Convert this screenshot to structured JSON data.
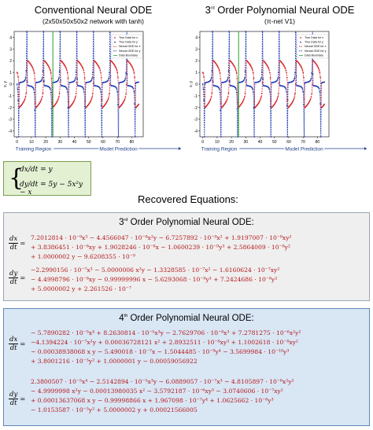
{
  "left_panel": {
    "title": "Conventional Neural ODE",
    "subtitle": "(2x50x50x50x2 network with tanh)"
  },
  "right_panel": {
    "title_prefix": "3",
    "title_sup": "rd",
    "title_rest": " Order Polynomial Neural ODE",
    "subtitle": "(π-net V1)"
  },
  "legend": [
    "True Data for x",
    "True Data for y",
    "Neural ODE for x",
    "Neural ODE for y",
    "Data Boundary"
  ],
  "axis_y_label": "x, y",
  "arrows": {
    "training": "Training Region",
    "prediction": "Model Prediction"
  },
  "colors": {
    "true_x": "#d62728",
    "true_y": "#1f3fb4",
    "pred_x": "#d62728",
    "pred_y": "#1f3fb4",
    "boundary": "#2ca02c",
    "box3_bg": "#efefef",
    "box4_bg": "#d9e6f4",
    "ode_bg": "#e4f0d2"
  },
  "ode_system": {
    "line1": "dx/dt = y",
    "line2": "dy/dt = 5y − 5x²y − x"
  },
  "recovered_title": "Recovered Equations:",
  "third_order": {
    "title_num": "3",
    "title_sup": "rd",
    "title_rest": " Order Polynomial Neural ODE:",
    "dx_lines": [
      "7.2012814 · 10⁻⁹x³ − 4.4566047 · 10⁻⁸x²y − 6.7257892 · 10⁻⁹x² + 1.9197007 · 10⁻⁸xy²",
      "+ 3.8386451 · 10⁻⁸xy + 1.9028246 · 10⁻⁸x − 1.0600239 · 10⁻⁹y³ + 2.5864009 · 10⁻⁸y²",
      "+ 1.0000002 y − 9.6208355 · 10⁻⁹"
    ],
    "dy_lines": [
      "−2.2990156 · 10⁻⁷x³ − 5.0000006 x²y − 1.3328585 · 10⁻⁷x² − 1.6160624 · 10⁻⁷xy²",
      "− 4.4998796 · 10⁻⁸xy − 0.99999996 x − 5.6293068 · 10⁻⁹y³ + 7.2424686 · 10⁻⁸y²",
      "+ 5.0000002 y + 2.261526 · 10⁻⁷"
    ]
  },
  "fourth_order": {
    "title_num": "4",
    "title_sup": "th",
    "title_rest": " Order Polynomial Neural ODE:",
    "dx_lines": [
      "− 5.7890282 · 10⁻⁵x⁴ + 8.2630814 · 10⁻⁵x³y − 2.7629706 · 10⁻⁸x³ + 7.2781275 · 10⁻⁶x²y²",
      "−4.1394224 · 10⁻⁷x²y + 0.00036728121 x² + 2.8932511 · 10⁻⁸xy³ + 1.1002618 · 10⁻⁸xy²",
      "− 0.00038938068 x y − 5.490018 · 10⁻⁷x − 1.5044485 · 10⁻⁹y⁴ − 3.5699984 · 10⁻¹⁰y³",
      "+ 3.8001216 · 10⁻⁵y² + 1.0000001 y − 0.00059056922"
    ],
    "dy_lines": [
      "2.3800507 · 10⁻⁵x⁴ − 2.5142894 · 10⁻⁵x³y − 6.0889057 · 10⁻⁷x³ − 4.8105897 · 10⁻⁶x²y²",
      "− 4.9999998 x²y − 0.00013980035 x² − 3.5792187 · 10⁻⁶xy³ − 3.0740606 · 10⁻⁷xy²",
      "+ 0.00013637068 x y − 0.99998866 x + 1.967098 · 10⁻⁷y⁴ + 1.0625662 · 10⁻⁸y³",
      "− 1.0153587 · 10⁻⁵y² + 5.0000002 y + 0.00021566005"
    ]
  },
  "ticks_y": [
    "4",
    "3",
    "2",
    "1",
    "0",
    "-1",
    "-2",
    "-3",
    "-4"
  ],
  "ticks_x": [
    "0",
    "10",
    "20",
    "30",
    "40",
    "50",
    "60",
    "70",
    "80"
  ]
}
